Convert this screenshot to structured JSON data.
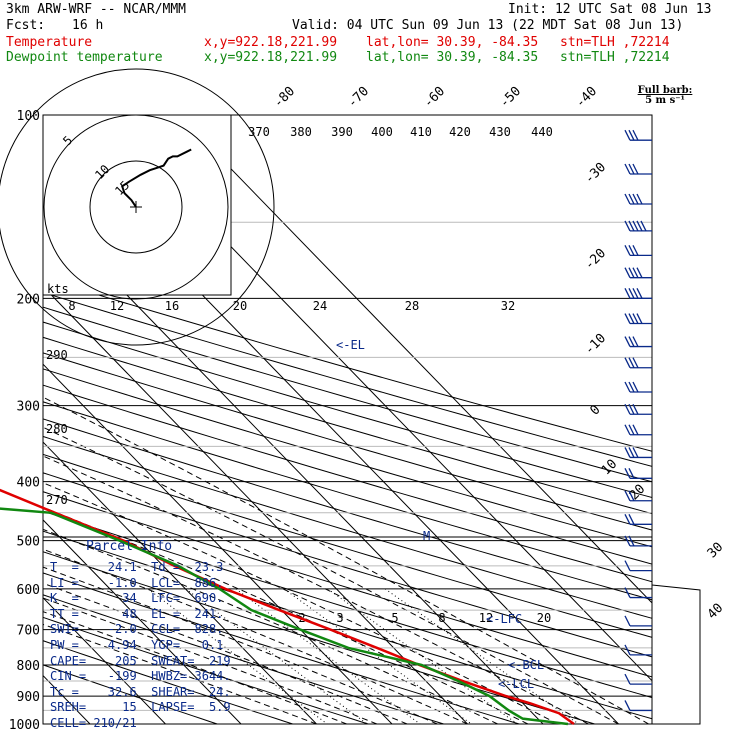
{
  "header": {
    "model": "3km ARW-WRF -- NCAR/MMM",
    "init": "Init: 12 UTC Sat 08 Jun 13",
    "fcst_label": "Fcst:",
    "fcst_value": "16 h",
    "valid": "Valid: 04 UTC Sun 09 Jun 13 (22 MDT Sat 08 Jun 13)"
  },
  "legend": [
    {
      "name": "Temperature",
      "xy": "x,y=922.18,221.99",
      "latlon": "lat,lon= 30.39, -84.35",
      "stn": "stn=TLH ,72214",
      "color": "#e00000"
    },
    {
      "name": "Dewpoint temperature",
      "xy": "x,y=922.18,221.99",
      "latlon": "lat,lon= 30.39, -84.35",
      "stn": "stn=TLH ,72214",
      "color": "#118811"
    }
  ],
  "barb_key": {
    "line1": "Full barb:",
    "line2": "5 m s⁻¹"
  },
  "chart_data": {
    "type": "line",
    "y_axis": {
      "label": "pressure (hPa)",
      "scale": "log",
      "ticks": [
        100,
        200,
        300,
        400,
        500,
        600,
        700,
        800,
        900,
        1000
      ]
    },
    "isotherm_labels": [
      "-80",
      "-70",
      "-60",
      "-50",
      "-40",
      "-30",
      "-20",
      "-10",
      "0",
      "10",
      "20",
      "30",
      "40"
    ],
    "theta_labels_top": [
      "370",
      "380",
      "390",
      "400",
      "410",
      "420",
      "430",
      "440"
    ],
    "theta_labels_left": [
      "290",
      "280",
      "270"
    ],
    "mixing_ratio_labels": [
      "2",
      "3",
      "5",
      "8",
      "12",
      "20"
    ],
    "hodograph": {
      "unit_label": "kts",
      "ring_labels": [
        "5",
        "10",
        "15"
      ],
      "wind_ticks": [
        "8",
        "12",
        "16",
        "20",
        "24",
        "28",
        "32"
      ]
    },
    "annotations": [
      "<-EL",
      "M",
      "<-LFC",
      "<-BCL",
      "<-LCL"
    ],
    "series": [
      {
        "name": "Temperature",
        "points": [
          [
            1000,
            24.1
          ],
          [
            960,
            23.5
          ],
          [
            925,
            21.0
          ],
          [
            900,
            18.7
          ],
          [
            850,
            14.9
          ],
          [
            800,
            11.2
          ],
          [
            750,
            7.8
          ],
          [
            700,
            4.0
          ],
          [
            650,
            -0.3
          ],
          [
            600,
            -4.7
          ],
          [
            550,
            -8.5
          ],
          [
            500,
            -12.0
          ],
          [
            450,
            -17.5
          ],
          [
            400,
            -23.5
          ],
          [
            350,
            -31.0
          ],
          [
            300,
            -40.0
          ],
          [
            250,
            -50.5
          ],
          [
            200,
            -60.0
          ],
          [
            170,
            -68.0
          ],
          [
            150,
            -70.0
          ],
          [
            130,
            -70.5
          ],
          [
            115,
            -69.5
          ],
          [
            100,
            -67.0
          ]
        ]
      },
      {
        "name": "Dewpoint temperature",
        "points": [
          [
            1000,
            23.3
          ],
          [
            980,
            18.0
          ],
          [
            950,
            17.2
          ],
          [
            900,
            16.5
          ],
          [
            850,
            14.3
          ],
          [
            800,
            11.5
          ],
          [
            750,
            4.0
          ],
          [
            700,
            0.0
          ],
          [
            650,
            -4.0
          ],
          [
            600,
            -5.5
          ],
          [
            550,
            -8.0
          ],
          [
            500,
            -12.5
          ],
          [
            450,
            -18.0
          ],
          [
            420,
            -45.0
          ],
          [
            400,
            -58.0
          ],
          [
            380,
            -62.0
          ],
          [
            350,
            -53.0
          ],
          [
            300,
            -47.0
          ],
          [
            250,
            -59.0
          ],
          [
            200,
            -69.0
          ],
          [
            170,
            -78.0
          ],
          [
            150,
            -84.0
          ],
          [
            130,
            -83.0
          ],
          [
            115,
            -78.0
          ],
          [
            100,
            -73.0
          ]
        ]
      }
    ],
    "hodograph_trace_kts": [
      [
        0,
        0
      ],
      [
        -2,
        3
      ],
      [
        -5,
        6
      ],
      [
        -6,
        9
      ],
      [
        -3,
        11
      ],
      [
        2,
        14
      ],
      [
        6,
        16
      ],
      [
        9,
        17
      ],
      [
        12,
        18
      ],
      [
        14,
        21
      ],
      [
        16,
        22
      ],
      [
        18,
        22
      ],
      [
        22,
        24
      ],
      [
        24,
        25
      ]
    ],
    "wind_barbs": [
      {
        "p": 110,
        "spd": 15
      },
      {
        "p": 125,
        "spd": 15
      },
      {
        "p": 140,
        "spd": 20
      },
      {
        "p": 155,
        "spd": 25
      },
      {
        "p": 170,
        "spd": 15
      },
      {
        "p": 185,
        "spd": 20
      },
      {
        "p": 200,
        "spd": 20
      },
      {
        "p": 220,
        "spd": 20
      },
      {
        "p": 240,
        "spd": 15
      },
      {
        "p": 260,
        "spd": 15
      },
      {
        "p": 285,
        "spd": 15
      },
      {
        "p": 310,
        "spd": 15
      },
      {
        "p": 335,
        "spd": 15
      },
      {
        "p": 365,
        "spd": 15
      },
      {
        "p": 395,
        "spd": 10
      },
      {
        "p": 430,
        "spd": 10
      },
      {
        "p": 470,
        "spd": 10
      },
      {
        "p": 510,
        "spd": 10
      },
      {
        "p": 560,
        "spd": 5
      },
      {
        "p": 620,
        "spd": 5
      },
      {
        "p": 690,
        "spd": 5
      },
      {
        "p": 770,
        "spd": 5
      },
      {
        "p": 860,
        "spd": 5
      },
      {
        "p": 950,
        "spd": 5
      }
    ]
  },
  "parcel_info": {
    "title": "Parcel Info",
    "rows": [
      "T  =    24.1  Td =  23.3",
      "LI =    -1.0  LCL=  886.",
      "K  =      34  LFC=  690.",
      "TT =      48  EL =  241.",
      "SWI=    -2.0  CCL=  828.",
      "PW =    4.94  YGP=   0.1",
      "CAPE=    205  SWEAT=  219",
      "CIN =   -199  HWBZ= 3644.",
      "Tc =    32.6  SHEAR=  24.",
      "SREH=     15  LAPSE=  5.9",
      "CELL= 210/21"
    ]
  }
}
